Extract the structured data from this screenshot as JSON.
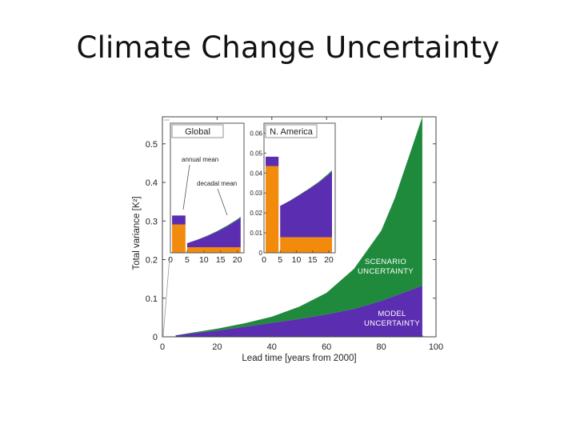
{
  "slide": {
    "title": "Climate Change Uncertainty"
  },
  "colors": {
    "scenario": "#1f8a3c",
    "model": "#5b2db0",
    "internal": "#f28a0c"
  },
  "chart_data": [
    {
      "type": "area",
      "xlabel": "Lead time  [years from 2000]",
      "ylabel": "Total variance  [K²]",
      "xlim": [
        0,
        100
      ],
      "ylim": [
        0,
        0.57
      ],
      "xticks": [
        0,
        20,
        40,
        60,
        80,
        100
      ],
      "xtick_labels": [
        "0",
        "20",
        "40",
        "60",
        "80",
        "100"
      ],
      "yticks": [
        0,
        0.1,
        0.2,
        0.3,
        0.4,
        0.5
      ],
      "ytick_labels": [
        "0",
        "0.1",
        "0.2",
        "0.3",
        "0.4",
        "0.5"
      ],
      "annotations": [
        "SCENARIO",
        "UNCERTAINTY",
        "MODEL",
        "UNCERTAINTY"
      ],
      "x": [
        5,
        10,
        20,
        30,
        40,
        50,
        60,
        70,
        80,
        85,
        90,
        95
      ],
      "series": [
        {
          "name": "MODEL UNCERTAINTY",
          "values": [
            0.004,
            0.008,
            0.016,
            0.026,
            0.036,
            0.046,
            0.058,
            0.072,
            0.093,
            0.106,
            0.119,
            0.132
          ]
        },
        {
          "name": "SCENARIO UNCERTAINTY",
          "values": [
            0.004,
            0.01,
            0.021,
            0.035,
            0.052,
            0.078,
            0.114,
            0.176,
            0.275,
            0.36,
            0.465,
            0.57
          ]
        }
      ]
    },
    {
      "type": "area",
      "title": "Global",
      "xlabel": "Lead time  [years from 2000]",
      "xlim": [
        0,
        22
      ],
      "ylim": [
        0,
        0.065
      ],
      "xticks": [
        0,
        5,
        10,
        15,
        20
      ],
      "xtick_labels": [
        "0",
        "5",
        "10",
        "15",
        "20"
      ],
      "annotations": [
        "annual mean",
        "decadal mean"
      ],
      "annual_mean": {
        "internal": 0.0142,
        "model": 0.0045
      },
      "decadal": {
        "x": [
          5,
          8,
          11,
          14,
          17,
          20,
          21
        ],
        "internal": [
          0.0028,
          0.0028,
          0.0028,
          0.0028,
          0.0028,
          0.0028,
          0.0028
        ],
        "model_top": [
          0.0048,
          0.0065,
          0.0084,
          0.0106,
          0.0133,
          0.0163,
          0.0175
        ],
        "scenario_top": [
          0.0048,
          0.0066,
          0.0086,
          0.0109,
          0.0137,
          0.0168,
          0.0181
        ]
      }
    },
    {
      "type": "area",
      "title": "N. America",
      "xlim": [
        0,
        22
      ],
      "ylim": [
        0,
        0.065
      ],
      "yticks": [
        0,
        0.01,
        0.02,
        0.03,
        0.04,
        0.05,
        0.06
      ],
      "ytick_labels": [
        "0",
        "0.01",
        "0.02",
        "0.03",
        "0.04",
        "0.05",
        "0.06"
      ],
      "xticks": [
        0,
        5,
        10,
        15,
        20
      ],
      "xtick_labels": [
        "0",
        "5",
        "10",
        "15",
        "20"
      ],
      "annual_mean": {
        "internal": 0.0435,
        "model": 0.0047
      },
      "decadal": {
        "x": [
          5,
          8,
          11,
          14,
          17,
          20,
          21
        ],
        "internal": [
          0.0078,
          0.0078,
          0.0078,
          0.0078,
          0.0078,
          0.0078,
          0.0078
        ],
        "model_top": [
          0.0235,
          0.0261,
          0.029,
          0.032,
          0.0353,
          0.0392,
          0.0406
        ],
        "scenario_top": [
          0.0235,
          0.0262,
          0.0292,
          0.0323,
          0.0357,
          0.0398,
          0.0414
        ]
      }
    }
  ]
}
